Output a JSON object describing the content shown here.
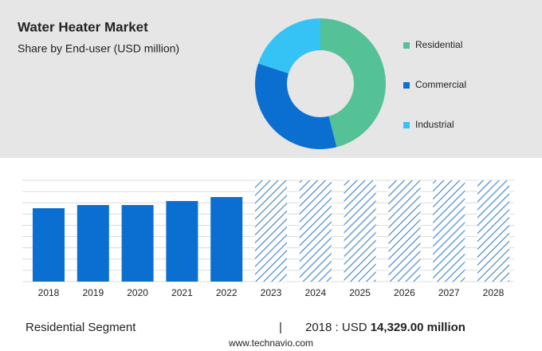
{
  "chart_data": [
    {
      "type": "donut",
      "title": "Water Heater Market",
      "subtitle": "Share by End-user (USD million)",
      "categories": [
        "Residential",
        "Commercial",
        "Industrial"
      ],
      "values": [
        46,
        34,
        20
      ],
      "colors": [
        "#55c196",
        "#0b6fd1",
        "#35c3f5"
      ]
    },
    {
      "type": "bar",
      "categories": [
        "2018",
        "2019",
        "2020",
        "2021",
        "2022",
        "2023",
        "2024",
        "2025",
        "2026",
        "2027",
        "2028"
      ],
      "values": [
        14329,
        14950,
        14950,
        15730,
        16510,
        null,
        null,
        null,
        null,
        null,
        null
      ],
      "color": "#0b6fd1",
      "ylim": [
        0,
        19780
      ],
      "grid": true
    }
  ],
  "footer": {
    "segment": "Residential Segment",
    "separator": "|",
    "year_label": "2018 : USD",
    "amount": "14,329.00 million",
    "source": "www.technavio.com"
  }
}
